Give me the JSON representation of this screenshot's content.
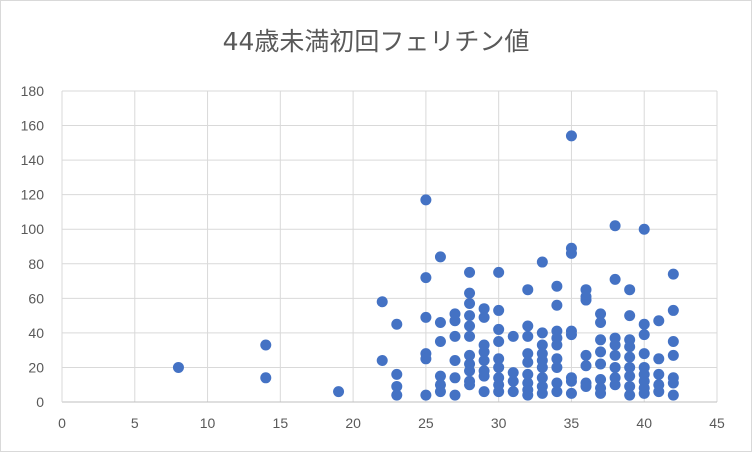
{
  "chart_data": {
    "type": "scatter",
    "title": "44歳未満初回フェリチン値",
    "xlabel": "",
    "ylabel": "",
    "xlim": [
      0,
      45
    ],
    "ylim": [
      0,
      180
    ],
    "x_ticks": [
      "0",
      "5",
      "10",
      "15",
      "20",
      "25",
      "30",
      "35",
      "40",
      "45"
    ],
    "y_ticks": [
      "0",
      "20",
      "40",
      "60",
      "80",
      "100",
      "120",
      "140",
      "160",
      "180"
    ],
    "grid": true,
    "legend": "none",
    "marker_color": "#4472c4",
    "series": [
      {
        "points": [
          [
            8,
            20
          ],
          [
            14,
            33
          ],
          [
            14,
            14
          ],
          [
            19,
            6
          ],
          [
            22,
            58
          ],
          [
            22,
            24
          ],
          [
            23,
            45
          ],
          [
            23,
            16
          ],
          [
            23,
            9
          ],
          [
            23,
            4
          ],
          [
            25,
            117
          ],
          [
            25,
            72
          ],
          [
            25,
            49
          ],
          [
            25,
            28
          ],
          [
            25,
            25
          ],
          [
            25,
            4
          ],
          [
            26,
            84
          ],
          [
            26,
            46
          ],
          [
            26,
            35
          ],
          [
            26,
            15
          ],
          [
            26,
            10
          ],
          [
            26,
            6
          ],
          [
            27,
            51
          ],
          [
            27,
            47
          ],
          [
            27,
            38
          ],
          [
            27,
            24
          ],
          [
            27,
            14
          ],
          [
            27,
            4
          ],
          [
            28,
            75
          ],
          [
            28,
            63
          ],
          [
            28,
            57
          ],
          [
            28,
            50
          ],
          [
            28,
            44
          ],
          [
            28,
            38
          ],
          [
            28,
            27
          ],
          [
            28,
            22
          ],
          [
            28,
            18
          ],
          [
            28,
            12
          ],
          [
            28,
            10
          ],
          [
            29,
            54
          ],
          [
            29,
            49
          ],
          [
            29,
            33
          ],
          [
            29,
            29
          ],
          [
            29,
            24
          ],
          [
            29,
            18
          ],
          [
            29,
            15
          ],
          [
            29,
            6
          ],
          [
            30,
            75
          ],
          [
            30,
            53
          ],
          [
            30,
            42
          ],
          [
            30,
            35
          ],
          [
            30,
            25
          ],
          [
            30,
            20
          ],
          [
            30,
            14
          ],
          [
            30,
            10
          ],
          [
            30,
            6
          ],
          [
            31,
            38
          ],
          [
            31,
            17
          ],
          [
            31,
            12
          ],
          [
            31,
            6
          ],
          [
            32,
            65
          ],
          [
            32,
            44
          ],
          [
            32,
            38
          ],
          [
            32,
            28
          ],
          [
            32,
            23
          ],
          [
            32,
            16
          ],
          [
            32,
            11
          ],
          [
            32,
            7
          ],
          [
            32,
            4
          ],
          [
            33,
            81
          ],
          [
            33,
            40
          ],
          [
            33,
            33
          ],
          [
            33,
            28
          ],
          [
            33,
            24
          ],
          [
            33,
            20
          ],
          [
            33,
            14
          ],
          [
            33,
            9
          ],
          [
            33,
            5
          ],
          [
            34,
            67
          ],
          [
            34,
            56
          ],
          [
            34,
            41
          ],
          [
            34,
            37
          ],
          [
            34,
            33
          ],
          [
            34,
            25
          ],
          [
            34,
            20
          ],
          [
            34,
            11
          ],
          [
            34,
            6
          ],
          [
            35,
            154
          ],
          [
            35,
            89
          ],
          [
            35,
            86
          ],
          [
            35,
            41
          ],
          [
            35,
            39
          ],
          [
            35,
            14
          ],
          [
            35,
            12
          ],
          [
            35,
            5
          ],
          [
            36,
            65
          ],
          [
            36,
            61
          ],
          [
            36,
            59
          ],
          [
            36,
            27
          ],
          [
            36,
            21
          ],
          [
            36,
            11
          ],
          [
            36,
            9
          ],
          [
            37,
            51
          ],
          [
            37,
            46
          ],
          [
            37,
            36
          ],
          [
            37,
            29
          ],
          [
            37,
            22
          ],
          [
            37,
            13
          ],
          [
            37,
            8
          ],
          [
            37,
            5
          ],
          [
            38,
            102
          ],
          [
            38,
            71
          ],
          [
            38,
            37
          ],
          [
            38,
            33
          ],
          [
            38,
            27
          ],
          [
            38,
            20
          ],
          [
            38,
            14
          ],
          [
            38,
            10
          ],
          [
            39,
            65
          ],
          [
            39,
            50
          ],
          [
            39,
            36
          ],
          [
            39,
            32
          ],
          [
            39,
            26
          ],
          [
            39,
            20
          ],
          [
            39,
            15
          ],
          [
            39,
            9
          ],
          [
            39,
            4
          ],
          [
            40,
            100
          ],
          [
            40,
            45
          ],
          [
            40,
            39
          ],
          [
            40,
            28
          ],
          [
            40,
            20
          ],
          [
            40,
            16
          ],
          [
            40,
            12
          ],
          [
            40,
            8
          ],
          [
            40,
            5
          ],
          [
            41,
            47
          ],
          [
            41,
            25
          ],
          [
            41,
            16
          ],
          [
            41,
            10
          ],
          [
            41,
            6
          ],
          [
            42,
            74
          ],
          [
            42,
            53
          ],
          [
            42,
            35
          ],
          [
            42,
            27
          ],
          [
            42,
            14
          ],
          [
            42,
            11
          ],
          [
            42,
            4
          ]
        ]
      }
    ]
  }
}
